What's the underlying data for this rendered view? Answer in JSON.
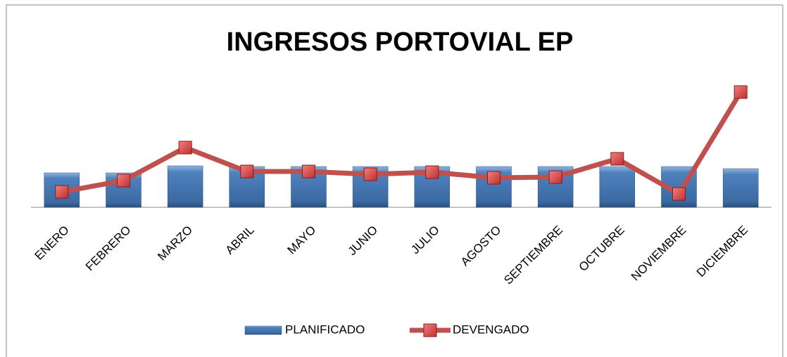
{
  "chart_data": {
    "type": "bar_line",
    "title": "INGRESOS PORTOVIAL EP",
    "categories": [
      "ENERO",
      "FEBRERO",
      "MARZO",
      "ABRIL",
      "MAYO",
      "JUNIO",
      "JULIO",
      "AGOSTO",
      "SEPTIEMBRE",
      "OCTUBRE",
      "NOVIEMBRE",
      "DICIEMBRE"
    ],
    "series": [
      {
        "name": "PLANIFICADO",
        "type": "bar",
        "color": "#4f81bd",
        "values": [
          49,
          49,
          59,
          58,
          58,
          58,
          58,
          58,
          58,
          58,
          58,
          55
        ]
      },
      {
        "name": "DEVENGADO",
        "type": "line",
        "color": "#c0504d",
        "values": [
          22,
          38,
          85,
          51,
          51,
          47,
          50,
          42,
          43,
          69,
          19,
          164
        ]
      }
    ],
    "ylim": [
      0,
      170
    ],
    "legend": "bottom"
  }
}
